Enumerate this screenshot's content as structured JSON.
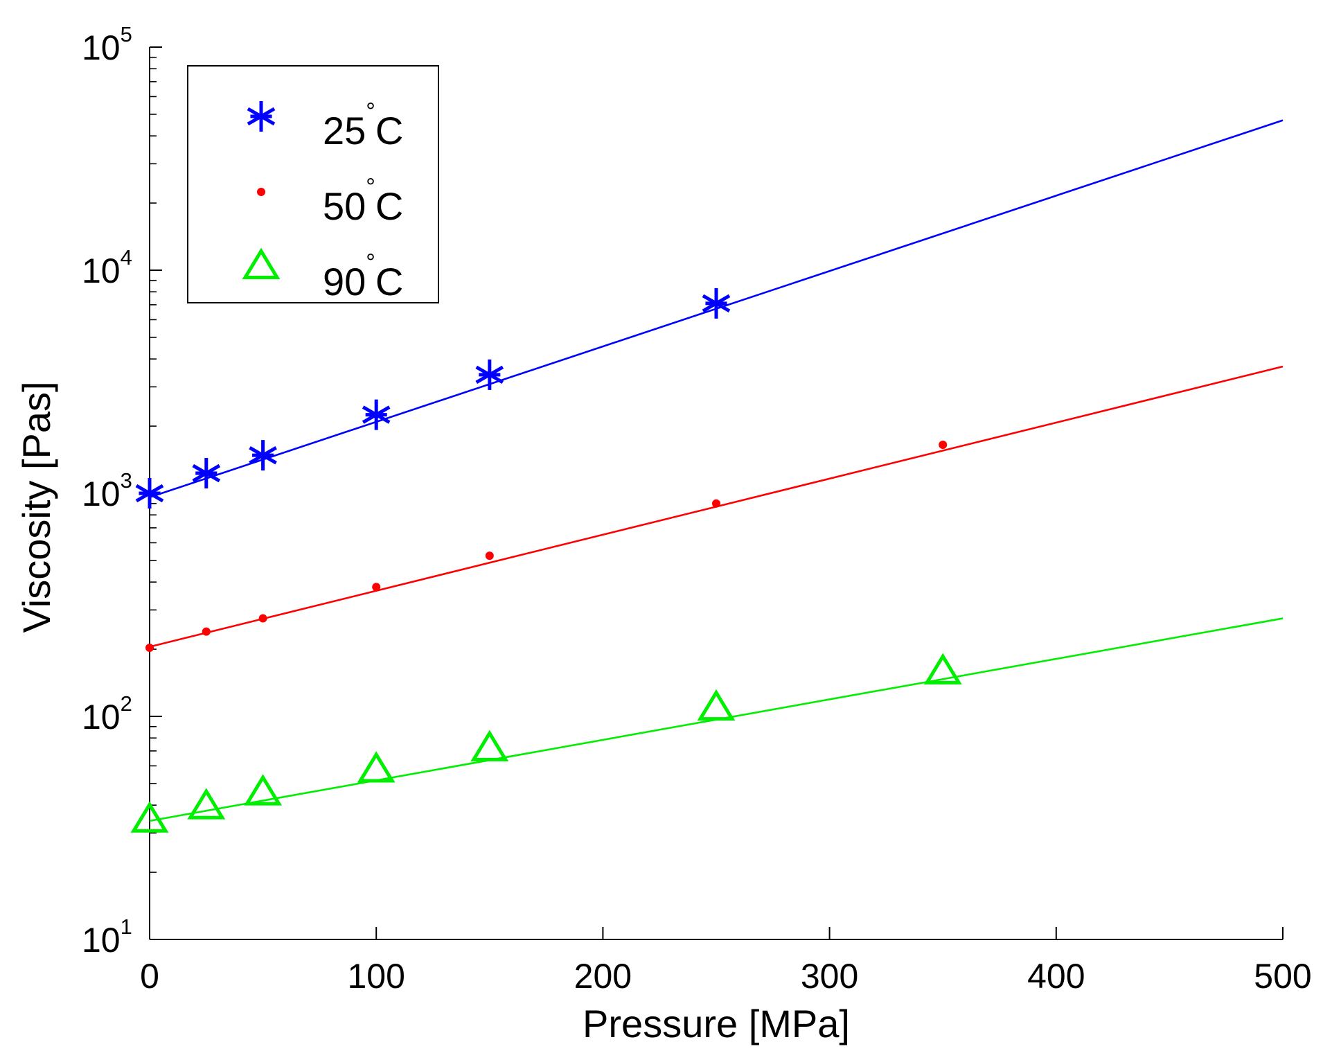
{
  "chart_data": {
    "type": "scatter",
    "y_scale": "log",
    "xlabel": "Pressure [MPa]",
    "ylabel": "Viscosity [Pas]",
    "xlim": [
      0,
      500
    ],
    "ylim": [
      10,
      100000
    ],
    "x_ticks": [
      {
        "value": 0,
        "label": "0"
      },
      {
        "value": 100,
        "label": "100"
      },
      {
        "value": 200,
        "label": "200"
      },
      {
        "value": 300,
        "label": "300"
      },
      {
        "value": 400,
        "label": "400"
      },
      {
        "value": 500,
        "label": "500"
      }
    ],
    "y_ticks": [
      {
        "value": 10,
        "base": "10",
        "exp": "1"
      },
      {
        "value": 100,
        "base": "10",
        "exp": "2"
      },
      {
        "value": 1000,
        "base": "10",
        "exp": "3"
      },
      {
        "value": 10000,
        "base": "10",
        "exp": "4"
      },
      {
        "value": 100000,
        "base": "10",
        "exp": "5"
      }
    ],
    "legend_position": "top-left",
    "series": [
      {
        "name": "25°C",
        "legend_number": "25",
        "legend_unit": "C",
        "degree_symbol": "°",
        "marker": "asterisk",
        "color": "#0000ff",
        "x": [
          0,
          25,
          50,
          100,
          150,
          250
        ],
        "y": [
          1000,
          1230,
          1480,
          2250,
          3400,
          7100
        ],
        "fit": {
          "x": [
            0,
            500
          ],
          "y": [
            960,
            47000
          ]
        }
      },
      {
        "name": "50°C",
        "legend_number": "50",
        "legend_unit": "C",
        "degree_symbol": "°",
        "marker": "dot",
        "color": "#ff0000",
        "x": [
          0,
          25,
          50,
          100,
          150,
          250,
          350
        ],
        "y": [
          203,
          240,
          275,
          380,
          525,
          900,
          1650
        ],
        "fit": {
          "x": [
            0,
            500
          ],
          "y": [
            205,
            3700
          ]
        }
      },
      {
        "name": "90°C",
        "legend_number": "90",
        "legend_unit": "C",
        "degree_symbol": "°",
        "marker": "triangle",
        "color": "#00ee00",
        "x": [
          0,
          25,
          50,
          100,
          150,
          250,
          350
        ],
        "y": [
          34,
          39,
          45,
          57,
          71,
          108,
          157
        ],
        "fit": {
          "x": [
            0,
            500
          ],
          "y": [
            34,
            275
          ]
        }
      }
    ]
  }
}
